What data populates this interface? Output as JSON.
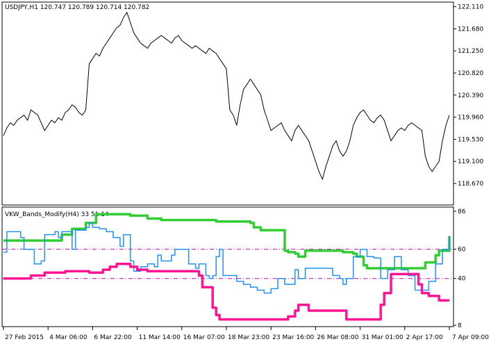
{
  "chart_data": [
    {
      "type": "line",
      "title": "USDJPY,H1  120.747 120.789 120.714 120.782",
      "symbol": "USDJPY,H1",
      "ohlc": [
        "120.747",
        "120.789",
        "120.714",
        "120.782"
      ],
      "ylim": [
        118.25,
        122.2
      ],
      "yticks": [
        "122.110",
        "121.680",
        "121.250",
        "120.820",
        "120.390",
        "119.960",
        "119.530",
        "119.100",
        "118.670"
      ],
      "grid": false,
      "series": [
        {
          "color": "#000000",
          "x": [
            0,
            1,
            2,
            3,
            4,
            5,
            6,
            7,
            8,
            9,
            10,
            11,
            12,
            13,
            14,
            15,
            16,
            17,
            18,
            19,
            20,
            21,
            22,
            23,
            24,
            25,
            26,
            27,
            28,
            29,
            30,
            31,
            32,
            33,
            34,
            35,
            36,
            37,
            38,
            39,
            40,
            41,
            42,
            43,
            44,
            45,
            46,
            47,
            48,
            49,
            50,
            51,
            52,
            53,
            54,
            55,
            56,
            57,
            58,
            59,
            60,
            61,
            62,
            63,
            64,
            65,
            66,
            67,
            68,
            69,
            70,
            71,
            72,
            73,
            74,
            75,
            76,
            77,
            78,
            79,
            80,
            81,
            82,
            83,
            84,
            85,
            86,
            87,
            88,
            89,
            90,
            91,
            92,
            93,
            94,
            95,
            96,
            97,
            98,
            99,
            100,
            101,
            102,
            103,
            104,
            105,
            106,
            107,
            108,
            109,
            110,
            111,
            112,
            113,
            114,
            115,
            116,
            117,
            118,
            119,
            120,
            121,
            122,
            123,
            124,
            125,
            126,
            127,
            128,
            129,
            130
          ],
          "values": [
            119.6,
            119.75,
            119.85,
            119.8,
            119.9,
            119.95,
            120.0,
            119.9,
            120.1,
            120.05,
            120.0,
            119.85,
            119.7,
            119.8,
            119.9,
            119.85,
            119.95,
            119.9,
            120.05,
            120.1,
            120.2,
            120.15,
            120.05,
            120.0,
            120.1,
            121.0,
            121.1,
            121.2,
            121.15,
            121.3,
            121.4,
            121.5,
            121.6,
            121.7,
            121.75,
            121.9,
            122.0,
            121.8,
            121.6,
            121.5,
            121.4,
            121.35,
            121.3,
            121.4,
            121.45,
            121.5,
            121.55,
            121.5,
            121.45,
            121.4,
            121.5,
            121.55,
            121.45,
            121.4,
            121.35,
            121.3,
            121.35,
            121.3,
            121.25,
            121.2,
            121.3,
            121.25,
            121.2,
            121.1,
            121.0,
            120.9,
            120.1,
            120.0,
            119.8,
            120.2,
            120.5,
            120.6,
            120.7,
            120.6,
            120.5,
            120.4,
            120.1,
            119.9,
            119.7,
            119.75,
            119.8,
            119.85,
            119.7,
            119.6,
            119.5,
            119.7,
            119.8,
            119.7,
            119.6,
            119.5,
            119.3,
            119.1,
            118.9,
            118.75,
            119.0,
            119.2,
            119.4,
            119.5,
            119.3,
            119.2,
            119.3,
            119.5,
            119.8,
            119.95,
            120.05,
            120.1,
            120.0,
            119.9,
            119.85,
            119.95,
            120.0,
            119.9,
            119.7,
            119.5,
            119.6,
            119.7,
            119.75,
            119.7,
            119.8,
            119.85,
            119.8,
            119.75,
            119.7,
            119.2,
            119.0,
            118.9,
            119.0,
            119.1,
            119.5,
            119.8,
            120.0
          ]
        }
      ]
    },
    {
      "type": "line",
      "title": "VKW_Bands_Modify(H4) 33 51 14",
      "ylim": [
        8,
        86
      ],
      "yticks": [
        "86",
        "60",
        "40",
        "8"
      ],
      "levels": [
        60,
        40
      ],
      "grid": false,
      "series": [
        {
          "color": "#32CD32",
          "x": [
            0,
            12,
            16,
            17,
            19,
            20,
            24,
            27,
            30,
            34,
            37,
            38,
            42,
            44,
            46,
            51,
            55,
            62,
            63,
            72,
            73,
            75,
            82,
            83,
            85,
            86,
            88,
            98,
            99,
            102,
            103,
            105,
            106,
            122,
            123,
            126,
            127,
            129,
            130
          ],
          "values": [
            66,
            66,
            66,
            70,
            70,
            74,
            78,
            84,
            84,
            84,
            83,
            83,
            81,
            81,
            80,
            80,
            80,
            79,
            79,
            78,
            75,
            73,
            59,
            58,
            57,
            55,
            59,
            59,
            58,
            57,
            55,
            49,
            47,
            47,
            51,
            56,
            59,
            59,
            69
          ]
        },
        {
          "color": "#1E90FF",
          "x": [
            0,
            1,
            4,
            5,
            6,
            9,
            10,
            11,
            12,
            14,
            15,
            16,
            17,
            18,
            20,
            21,
            23,
            24,
            25,
            26,
            28,
            30,
            32,
            34,
            35,
            37,
            38,
            40,
            42,
            44,
            45,
            46,
            49,
            50,
            54,
            56,
            57,
            59,
            60,
            61,
            62,
            63,
            64,
            68,
            70,
            72,
            74,
            76,
            78,
            80,
            82,
            85,
            86,
            88,
            94,
            96,
            98,
            99,
            100,
            102,
            104,
            106,
            108,
            110,
            112,
            114,
            116,
            118,
            120,
            122,
            124,
            126,
            128,
            130
          ],
          "values": [
            58,
            72,
            72,
            68,
            60,
            50,
            50,
            52,
            70,
            70,
            72,
            68,
            72,
            72,
            60,
            73,
            73,
            75,
            78,
            75,
            74,
            72,
            68,
            62,
            70,
            52,
            45,
            48,
            50,
            48,
            56,
            52,
            56,
            60,
            50,
            47,
            50,
            42,
            40,
            42,
            55,
            60,
            42,
            38,
            36,
            34,
            32,
            30,
            33,
            40,
            36,
            46,
            40,
            47,
            47,
            42,
            40,
            36,
            40,
            55,
            60,
            55,
            54,
            40,
            46,
            55,
            46,
            42,
            32,
            32,
            38,
            50,
            60,
            69
          ]
        },
        {
          "color": "#FF1493",
          "x": [
            0,
            6,
            8,
            10,
            12,
            15,
            18,
            20,
            25,
            29,
            31,
            33,
            36,
            37,
            39,
            42,
            44,
            53,
            56,
            57,
            58,
            61,
            62,
            63,
            64,
            65,
            68,
            72,
            80,
            82,
            83,
            85,
            86,
            88,
            89,
            100,
            102,
            104,
            105,
            106,
            108,
            110,
            111,
            113,
            117,
            118,
            120,
            121,
            122,
            124,
            127,
            130
          ],
          "values": [
            40,
            40,
            42,
            42,
            44,
            44,
            45,
            45,
            44,
            46,
            48,
            50,
            50,
            48,
            46,
            45,
            45,
            45,
            45,
            42,
            34,
            20,
            15,
            12,
            12,
            12,
            12,
            12,
            12,
            12,
            14,
            18,
            22,
            22,
            18,
            12,
            12,
            12,
            12,
            12,
            12,
            22,
            30,
            43,
            43,
            43,
            43,
            36,
            30,
            28,
            25,
            25
          ]
        }
      ]
    }
  ],
  "x_axis": {
    "labels": [
      "27 Feb 2015",
      "4 Mar 06:00",
      "6 Mar 22:00",
      "11 Mar 14:00",
      "16 Mar 07:00",
      "18 Mar 23:00",
      "23 Mar 16:00",
      "26 Mar 08:00",
      "31 Mar 01:00",
      "2 Apr 17:00",
      "7 Apr 09:00"
    ],
    "positions": [
      0,
      13,
      26,
      39,
      52,
      65,
      78,
      91,
      104,
      117,
      130
    ],
    "range": [
      0,
      130
    ]
  }
}
